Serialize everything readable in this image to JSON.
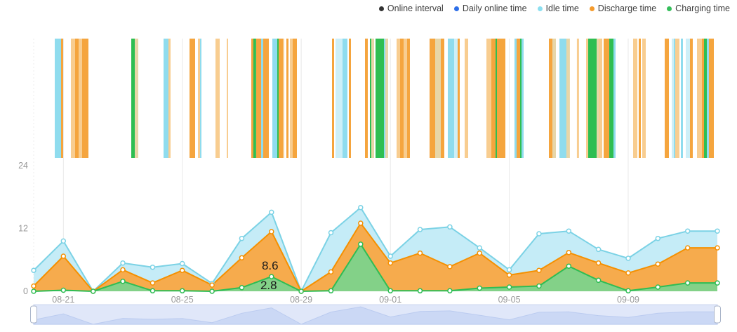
{
  "legend": {
    "items": [
      {
        "label": "Online interval",
        "color": "#333333"
      },
      {
        "label": "Daily online time",
        "color": "#2E6FE8"
      },
      {
        "label": "Idle time",
        "color": "#8CDFF0"
      },
      {
        "label": "Discharge time",
        "color": "#F59B2D"
      },
      {
        "label": "Charging time",
        "color": "#35BE5B"
      }
    ]
  },
  "chart_data": {
    "type": "area",
    "stacked": true,
    "title": "",
    "xlabel": "",
    "ylabel": "",
    "ylim": [
      0,
      24
    ],
    "y_tick_labels": [
      "0",
      "12",
      "24"
    ],
    "y_tick_values": [
      0,
      12,
      24
    ],
    "grid": "vertical-lines-at-labeled-dates",
    "legend_position": "top-right",
    "categories": [
      "08-20",
      "08-21",
      "08-22",
      "08-23",
      "08-24",
      "08-25",
      "08-26",
      "08-27",
      "08-28",
      "08-29",
      "08-30",
      "08-31",
      "09-01",
      "09-02",
      "09-03",
      "09-04",
      "09-05",
      "09-06",
      "09-07",
      "09-08",
      "09-09",
      "09-10",
      "09-11",
      "09-12"
    ],
    "x_tick_labels": [
      "08-21",
      "08-25",
      "08-29",
      "09-01",
      "09-05",
      "09-09"
    ],
    "x_tick_indices": [
      1,
      5,
      9,
      12,
      16,
      20
    ],
    "series": [
      {
        "name": "Charging time",
        "line_color": "#2EBD54",
        "fill_color": "#7CD38B",
        "values": [
          0,
          0.2,
          0,
          1.9,
          0.1,
          0.1,
          0,
          0.7,
          2.8,
          0,
          0.1,
          9.0,
          0.1,
          0.1,
          0.1,
          0.6,
          0.8,
          1.0,
          4.8,
          2.1,
          0.1,
          0.8,
          1.6,
          1.6
        ]
      },
      {
        "name": "Discharge time",
        "line_color": "#F59000",
        "fill_color": "#F9A843",
        "values": [
          1.0,
          6.5,
          0,
          2.2,
          1.5,
          3.9,
          1.2,
          5.7,
          8.6,
          0,
          3.6,
          4.0,
          5.3,
          7.2,
          4.6,
          6.7,
          2.3,
          3.0,
          2.6,
          3.3,
          3.4,
          4.4,
          6.7,
          6.7
        ]
      },
      {
        "name": "Idle time",
        "line_color": "#7BD2E5",
        "fill_color": "#C2EBF7",
        "values": [
          3.0,
          2.9,
          0,
          1.3,
          3.0,
          1.3,
          0.3,
          3.7,
          3.7,
          0,
          7.5,
          3.0,
          1.3,
          4.5,
          7.6,
          1.0,
          1.0,
          7.0,
          4.1,
          2.6,
          2.8,
          4.9,
          3.2,
          3.2
        ]
      }
    ],
    "annotations": [
      {
        "text": "8.6",
        "date": "08-28",
        "series": "Discharge time"
      },
      {
        "text": "2.8",
        "date": "08-28",
        "series": "Charging time"
      }
    ],
    "interval_band": {
      "description": "Online interval timeline: vertical stripes across the date range, colored by state",
      "colors": {
        "cy": "#8FDCEE",
        "cl": "#CDEFF8",
        "o": "#F5A53E",
        "ol": "#F8CD90",
        "g": "#2FBE52",
        "t": "#E7D6A8"
      },
      "stripes": [
        {
          "t": 0.0308,
          "w": 0.0092,
          "c": "cy"
        },
        {
          "t": 0.04,
          "w": 0.0031,
          "c": "o"
        },
        {
          "t": 0.0544,
          "w": 0.0062,
          "c": "ol"
        },
        {
          "t": 0.0606,
          "w": 0.0051,
          "c": "o"
        },
        {
          "t": 0.0657,
          "w": 0.0051,
          "c": "ol"
        },
        {
          "t": 0.0708,
          "w": 0.0092,
          "c": "o"
        },
        {
          "t": 0.1427,
          "w": 0.0051,
          "c": "g"
        },
        {
          "t": 0.1478,
          "w": 0.0051,
          "c": "t"
        },
        {
          "t": 0.1899,
          "w": 0.0072,
          "c": "cy"
        },
        {
          "t": 0.1971,
          "w": 0.0031,
          "c": "ol"
        },
        {
          "t": 0.2279,
          "w": 0.0082,
          "c": "o"
        },
        {
          "t": 0.2402,
          "w": 0.0031,
          "c": "ol"
        },
        {
          "t": 0.2433,
          "w": 0.0021,
          "c": "cy"
        },
        {
          "t": 0.2659,
          "w": 0.0062,
          "c": "ol"
        },
        {
          "t": 0.2823,
          "w": 0.0021,
          "c": "ol"
        },
        {
          "t": 0.3183,
          "w": 0.0031,
          "c": "o"
        },
        {
          "t": 0.3213,
          "w": 0.0041,
          "c": "g"
        },
        {
          "t": 0.3255,
          "w": 0.0072,
          "c": "o"
        },
        {
          "t": 0.3326,
          "w": 0.0031,
          "c": "cy"
        },
        {
          "t": 0.3357,
          "w": 0.0082,
          "c": "o"
        },
        {
          "t": 0.3491,
          "w": 0.0072,
          "c": "cy"
        },
        {
          "t": 0.3563,
          "w": 0.0021,
          "c": "g"
        },
        {
          "t": 0.3583,
          "w": 0.0062,
          "c": "o"
        },
        {
          "t": 0.3645,
          "w": 0.0021,
          "c": "ol"
        },
        {
          "t": 0.3696,
          "w": 0.0031,
          "c": "o"
        },
        {
          "t": 0.3747,
          "w": 0.0041,
          "c": "ol"
        },
        {
          "t": 0.3788,
          "w": 0.0062,
          "c": "o"
        },
        {
          "t": 0.4363,
          "w": 0.0031,
          "c": "o"
        },
        {
          "t": 0.4415,
          "w": 0.0103,
          "c": "cl"
        },
        {
          "t": 0.4517,
          "w": 0.0072,
          "c": "cy"
        },
        {
          "t": 0.461,
          "w": 0.0031,
          "c": "o"
        },
        {
          "t": 0.4846,
          "w": 0.0041,
          "c": "o"
        },
        {
          "t": 0.4918,
          "w": 0.0021,
          "c": "g"
        },
        {
          "t": 0.4938,
          "w": 0.0041,
          "c": "t"
        },
        {
          "t": 0.5,
          "w": 0.0123,
          "c": "g"
        },
        {
          "t": 0.5123,
          "w": 0.0021,
          "c": "cy"
        },
        {
          "t": 0.5144,
          "w": 0.0041,
          "c": "t"
        },
        {
          "t": 0.5308,
          "w": 0.0051,
          "c": "ol"
        },
        {
          "t": 0.5359,
          "w": 0.0051,
          "c": "o"
        },
        {
          "t": 0.5411,
          "w": 0.0051,
          "c": "ol"
        },
        {
          "t": 0.5462,
          "w": 0.0041,
          "c": "o"
        },
        {
          "t": 0.5791,
          "w": 0.0082,
          "c": "o"
        },
        {
          "t": 0.5873,
          "w": 0.0082,
          "c": "t"
        },
        {
          "t": 0.5955,
          "w": 0.0051,
          "c": "o"
        },
        {
          "t": 0.6057,
          "w": 0.0092,
          "c": "cy"
        },
        {
          "t": 0.615,
          "w": 0.0051,
          "c": "cl"
        },
        {
          "t": 0.6201,
          "w": 0.0031,
          "c": "o"
        },
        {
          "t": 0.6304,
          "w": 0.0051,
          "c": "ol"
        },
        {
          "t": 0.6622,
          "w": 0.0072,
          "c": "ol"
        },
        {
          "t": 0.6694,
          "w": 0.0062,
          "c": "o"
        },
        {
          "t": 0.6756,
          "w": 0.0021,
          "c": "g"
        },
        {
          "t": 0.6776,
          "w": 0.0123,
          "c": "o"
        },
        {
          "t": 0.7033,
          "w": 0.0031,
          "c": "cy"
        },
        {
          "t": 0.7064,
          "w": 0.0051,
          "c": "o"
        },
        {
          "t": 0.7115,
          "w": 0.0021,
          "c": "g"
        },
        {
          "t": 0.7136,
          "w": 0.0031,
          "c": "cy"
        },
        {
          "t": 0.7536,
          "w": 0.0051,
          "c": "o"
        },
        {
          "t": 0.7587,
          "w": 0.0051,
          "c": "t"
        },
        {
          "t": 0.769,
          "w": 0.0103,
          "c": "cy"
        },
        {
          "t": 0.7792,
          "w": 0.0051,
          "c": "t"
        },
        {
          "t": 0.7946,
          "w": 0.0031,
          "c": "ol"
        },
        {
          "t": 0.808,
          "w": 0.0031,
          "c": "ol"
        },
        {
          "t": 0.8111,
          "w": 0.0123,
          "c": "g"
        },
        {
          "t": 0.8234,
          "w": 0.0031,
          "c": "t"
        },
        {
          "t": 0.8265,
          "w": 0.0051,
          "c": "ol"
        },
        {
          "t": 0.8337,
          "w": 0.0082,
          "c": "o"
        },
        {
          "t": 0.8419,
          "w": 0.0062,
          "c": "g"
        },
        {
          "t": 0.848,
          "w": 0.0031,
          "c": "cy"
        },
        {
          "t": 0.8768,
          "w": 0.0062,
          "c": "ol"
        },
        {
          "t": 0.885,
          "w": 0.0031,
          "c": "o"
        },
        {
          "t": 0.8901,
          "w": 0.0051,
          "c": "ol"
        },
        {
          "t": 0.923,
          "w": 0.0062,
          "c": "o"
        },
        {
          "t": 0.9333,
          "w": 0.0031,
          "c": "cl"
        },
        {
          "t": 0.9363,
          "w": 0.0021,
          "c": "cy"
        },
        {
          "t": 0.9384,
          "w": 0.0062,
          "c": "ol"
        },
        {
          "t": 0.9466,
          "w": 0.0031,
          "c": "cy"
        },
        {
          "t": 0.9538,
          "w": 0.0062,
          "c": "cl"
        },
        {
          "t": 0.96,
          "w": 0.0041,
          "c": "o"
        },
        {
          "t": 0.9702,
          "w": 0.0072,
          "c": "ol"
        },
        {
          "t": 0.9774,
          "w": 0.0031,
          "c": "o"
        },
        {
          "t": 0.9805,
          "w": 0.0041,
          "c": "g"
        },
        {
          "t": 0.9846,
          "w": 0.0031,
          "c": "cy"
        },
        {
          "t": 0.9877,
          "w": 0.0072,
          "c": "o"
        }
      ]
    },
    "datazoom": {
      "range_start": "08-20",
      "range_end": "09-12",
      "track_fill": "#F2F5FD",
      "track_border": "#CCD6EE",
      "selected_fill": "rgba(205,217,246,0.5)",
      "silhouette_fill": "#C9D6F4",
      "silhouette_line": "#A8BDEA"
    },
    "axis_text_color": "#999999",
    "grid_line_color": "#E8E8E8",
    "label_text_color": "#1A1A1A"
  }
}
